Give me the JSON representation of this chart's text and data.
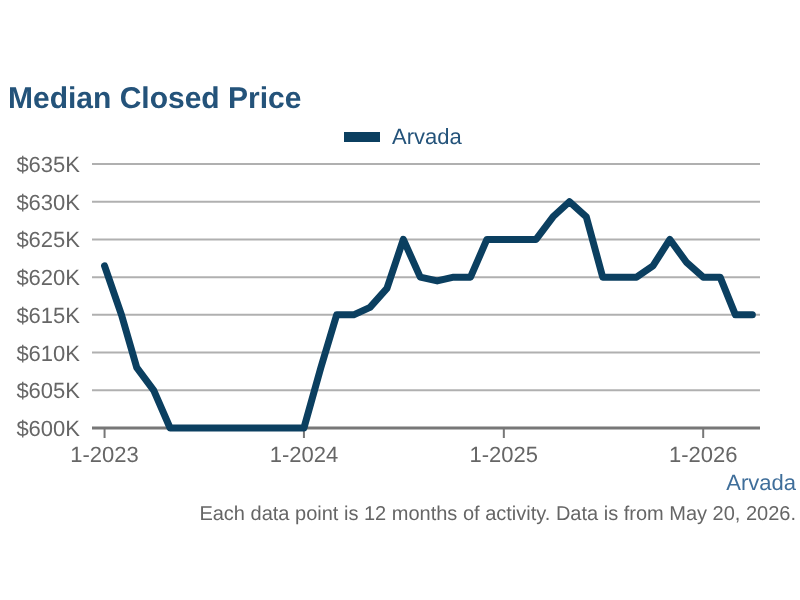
{
  "chart_data": {
    "type": "line",
    "title": "Median Closed Price",
    "xlabel": "Arvada",
    "legend": "top",
    "annotations": [
      "Each data point is 12 months of activity. Data is from May 20, 2026."
    ],
    "x": [
      "2023-01",
      "2023-02",
      "2023-03",
      "2023-04",
      "2023-05",
      "2023-06",
      "2023-07",
      "2023-08",
      "2023-09",
      "2023-10",
      "2023-11",
      "2023-12",
      "2024-01",
      "2024-02",
      "2024-03",
      "2024-04",
      "2024-05",
      "2024-06",
      "2024-07",
      "2024-08",
      "2024-09",
      "2024-10",
      "2024-11",
      "2024-12",
      "2025-01",
      "2025-02",
      "2025-03",
      "2025-04",
      "2025-05",
      "2025-06",
      "2025-07",
      "2025-08",
      "2025-09",
      "2025-10",
      "2025-11",
      "2025-12",
      "2026-01",
      "2026-02",
      "2026-03",
      "2026-04"
    ],
    "series": [
      {
        "name": "Arvada",
        "color": "#0b3f60",
        "values": [
          621.5,
          615,
          608,
          605,
          600,
          600,
          600,
          600,
          600,
          600,
          600,
          600,
          600,
          608,
          615,
          615,
          616,
          618.5,
          625,
          620,
          619.5,
          620,
          620,
          625,
          625,
          625,
          625,
          628,
          630,
          628,
          620,
          620,
          620,
          621.5,
          625,
          622,
          620,
          620,
          615,
          615
        ]
      }
    ],
    "xlim": [
      "2022-12-09",
      "2026-04-15"
    ],
    "xticks": [
      {
        "value": "2023-01",
        "label": "1-2023"
      },
      {
        "value": "2024-01",
        "label": "1-2024"
      },
      {
        "value": "2025-01",
        "label": "1-2025"
      },
      {
        "value": "2026-01",
        "label": "1-2026"
      }
    ],
    "ylim": [
      600,
      635
    ],
    "yticks": [
      {
        "value": 600,
        "label": "$600K"
      },
      {
        "value": 605,
        "label": "$605K"
      },
      {
        "value": 610,
        "label": "$610K"
      },
      {
        "value": 615,
        "label": "$615K"
      },
      {
        "value": 620,
        "label": "$620K"
      },
      {
        "value": 625,
        "label": "$625K"
      },
      {
        "value": 630,
        "label": "$630K"
      },
      {
        "value": 635,
        "label": "$635K"
      }
    ],
    "grid": "y",
    "marker": "none",
    "line_style": "solid"
  }
}
